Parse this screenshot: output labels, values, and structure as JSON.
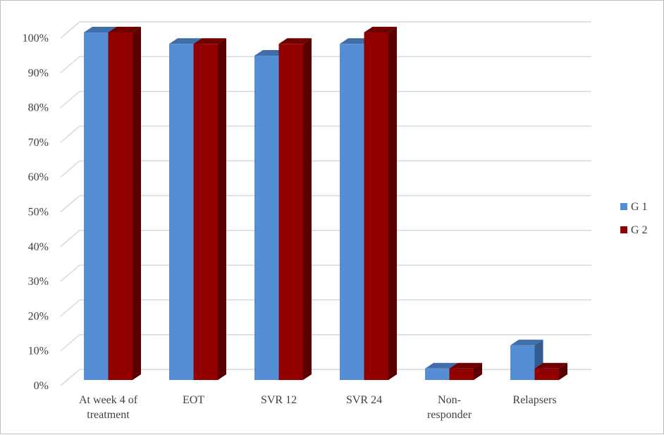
{
  "chart_data": {
    "type": "bar",
    "subtype": "3d-clustered",
    "categories": [
      [
        "At week 4 of",
        "treatment"
      ],
      [
        "EOT"
      ],
      [
        "SVR 12"
      ],
      [
        "SVR 24"
      ],
      [
        "Non-",
        "responder"
      ],
      [
        "Relapsers"
      ]
    ],
    "series": [
      {
        "name": "G 1",
        "color": "#558ED5",
        "top": "#3F6EA8",
        "side": "#335C8E",
        "values": [
          100,
          96.7,
          93.3,
          96.7,
          3.3,
          10
        ]
      },
      {
        "name": "G 2",
        "color": "#920000",
        "top": "#700000",
        "side": "#5A0000",
        "values": [
          100,
          96.7,
          96.7,
          100,
          3.3,
          3.3
        ]
      }
    ],
    "yticks": [
      "0%",
      "10%",
      "20%",
      "30%",
      "40%",
      "50%",
      "60%",
      "70%",
      "80%",
      "90%",
      "100%"
    ],
    "ylim": [
      0,
      100
    ],
    "grid": true,
    "legend": "right",
    "title": "",
    "xlabel": "",
    "ylabel": ""
  }
}
